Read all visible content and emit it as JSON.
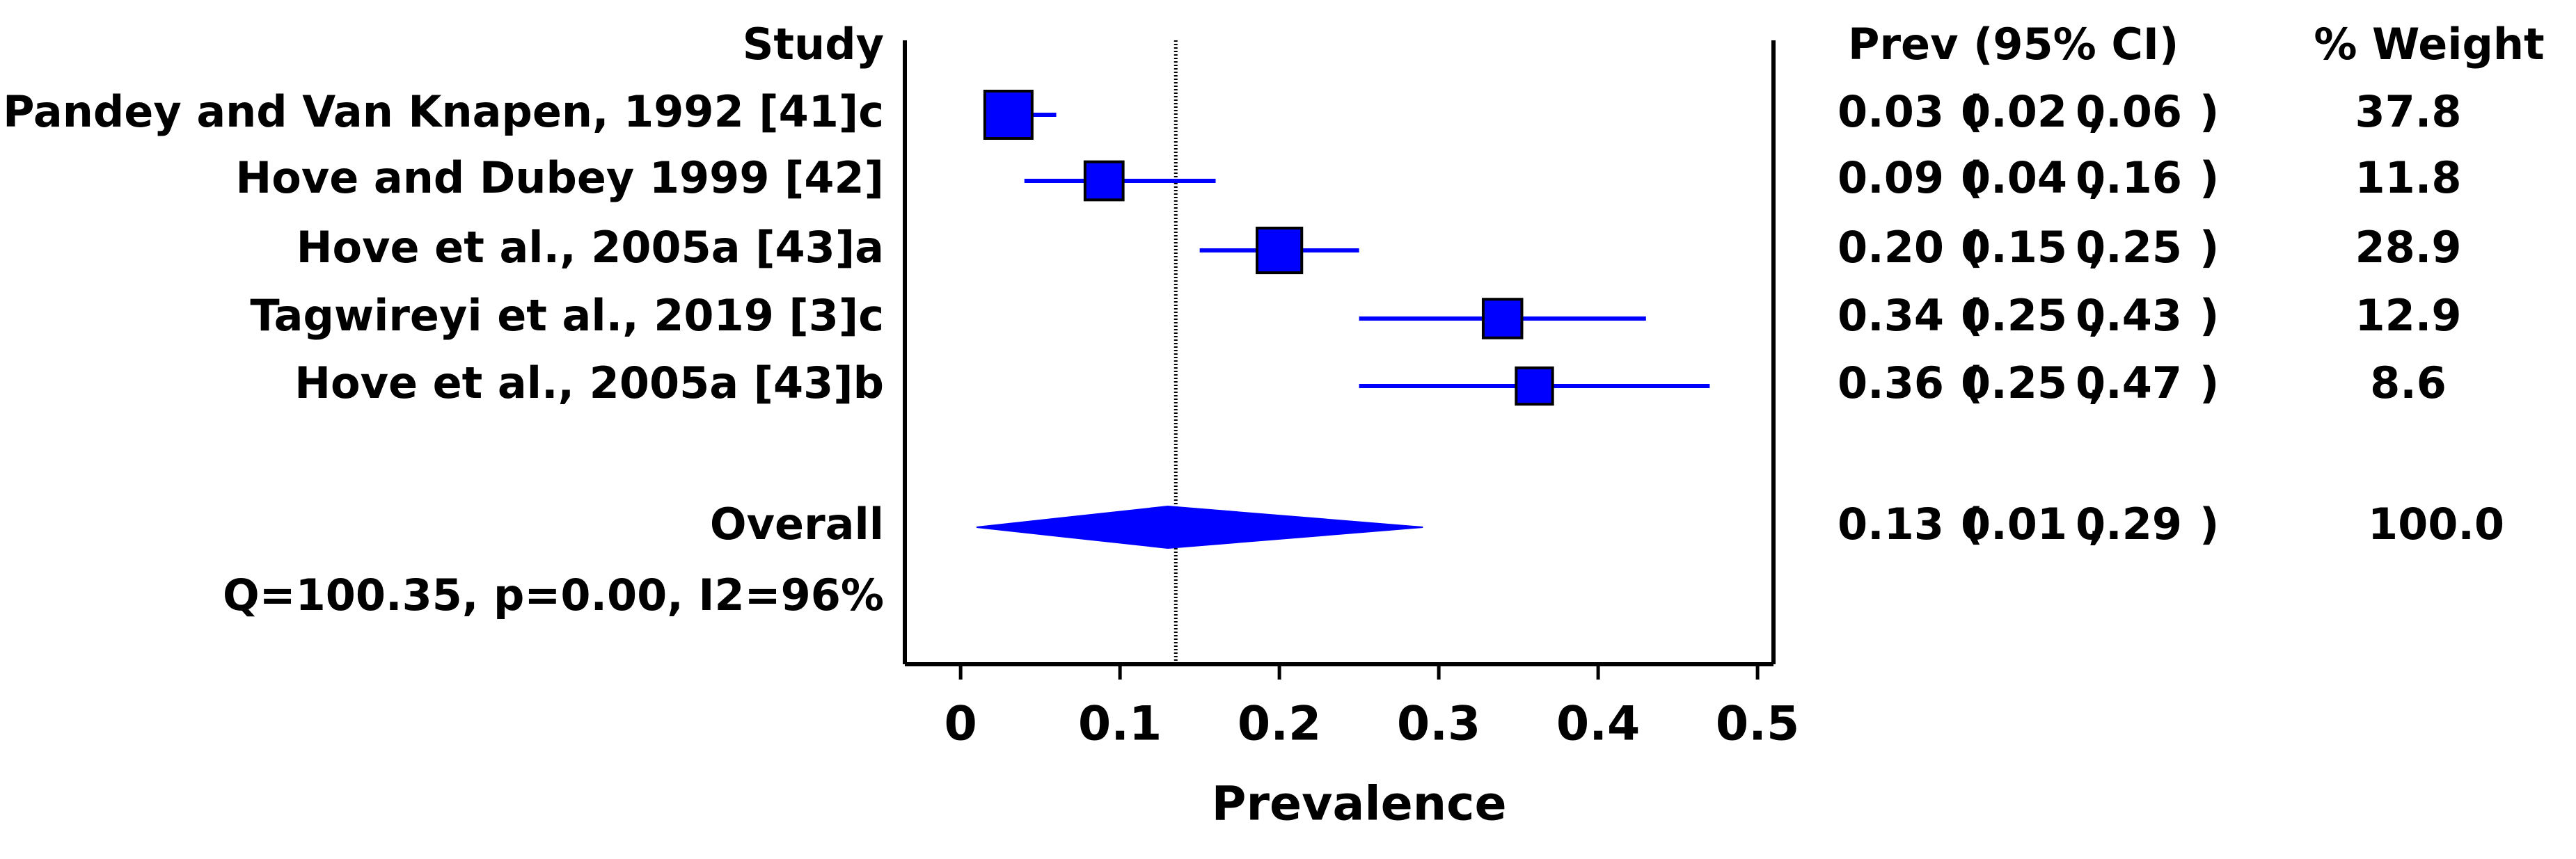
{
  "chart_data": {
    "type": "forest",
    "xlabel": "Prevalence",
    "xlim": [
      -0.035,
      0.51
    ],
    "x_ticks": [
      0,
      0.1,
      0.2,
      0.3,
      0.4,
      0.5
    ],
    "x_tick_labels": [
      "0",
      "0.1",
      "0.2",
      "0.3",
      "0.4",
      "0.5"
    ],
    "reference_line": 0.135,
    "headers": {
      "study": "Study",
      "prev_ci": "Prev (95% CI)",
      "weight": "% Weight"
    },
    "studies": [
      {
        "name": "Pandey and Van Knapen, 1992 [41]c",
        "prev": 0.03,
        "lower": 0.02,
        "upper": 0.06,
        "prev_text": "0.03",
        "lower_text": "0.02",
        "upper_text": "0.06",
        "weight": 37.8,
        "weight_text": "37.8"
      },
      {
        "name": "Hove and Dubey 1999 [42]",
        "prev": 0.09,
        "lower": 0.04,
        "upper": 0.16,
        "prev_text": "0.09",
        "lower_text": "0.04",
        "upper_text": "0.16",
        "weight": 11.8,
        "weight_text": "11.8"
      },
      {
        "name": "Hove et al., 2005a [43]a",
        "prev": 0.2,
        "lower": 0.15,
        "upper": 0.25,
        "prev_text": "0.20",
        "lower_text": "0.15",
        "upper_text": "0.25",
        "weight": 28.9,
        "weight_text": "28.9"
      },
      {
        "name": "Tagwireyi et al., 2019 [3]c",
        "prev": 0.34,
        "lower": 0.25,
        "upper": 0.43,
        "prev_text": "0.34",
        "lower_text": "0.25",
        "upper_text": "0.43",
        "weight": 12.9,
        "weight_text": "12.9"
      },
      {
        "name": "Hove et al., 2005a [43]b",
        "prev": 0.36,
        "lower": 0.25,
        "upper": 0.47,
        "prev_text": "0.36",
        "lower_text": "0.25",
        "upper_text": "0.47",
        "weight": 8.6,
        "weight_text": "8.6"
      }
    ],
    "overall": {
      "name": "Overall",
      "prev": 0.13,
      "lower": 0.01,
      "upper": 0.29,
      "prev_text": "0.13",
      "lower_text": "0.01",
      "upper_text": "0.29",
      "weight": 100.0,
      "weight_text": "100.0"
    },
    "heterogeneity": "Q=100.35, p=0.00, I2=96%",
    "colors": {
      "marker": "#0000ff",
      "marker_stroke": "#000000",
      "axis": "#000000",
      "text": "#000000"
    }
  }
}
